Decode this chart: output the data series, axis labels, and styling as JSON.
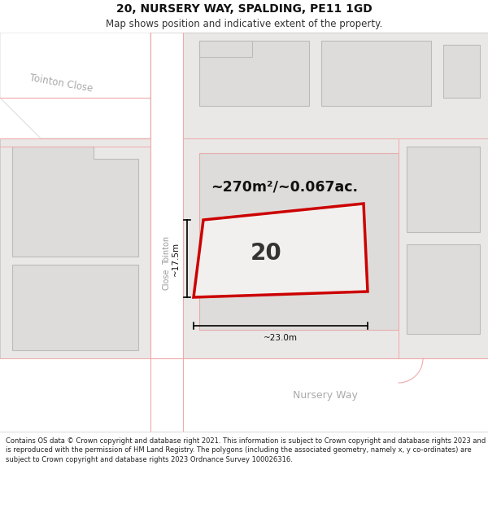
{
  "title": "20, NURSERY WAY, SPALDING, PE11 1GD",
  "subtitle": "Map shows position and indicative extent of the property.",
  "footer": "Contains OS data © Crown copyright and database right 2021. This information is subject to Crown copyright and database rights 2023 and is reproduced with the permission of HM Land Registry. The polygons (including the associated geometry, namely x, y co-ordinates) are subject to Crown copyright and database rights 2023 Ordnance Survey 100026316.",
  "bg_color": "#f2f0ee",
  "road_color": "#ffffff",
  "building_fill": "#dedcda",
  "plot_fill": "#eae8e6",
  "red_color": "#cc0000",
  "pink_color": "#f0aaaa",
  "dim_color": "#111111",
  "street_color": "#aaaaaa",
  "area_text": "~270m²/~0.067ac.",
  "number_label": "20",
  "width_label": "~23.0m",
  "height_label": "~17.5m",
  "nursery_way": "Nursery Way",
  "tointon_close": "Tointon Close",
  "tointon_road_vert": "Tointon"
}
